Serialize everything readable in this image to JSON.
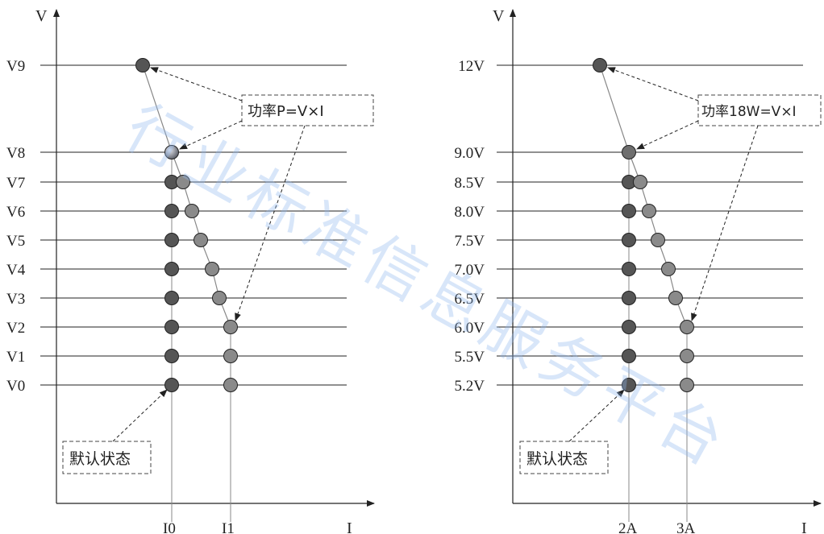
{
  "left_diagram": {
    "y_axis_label": "V",
    "x_axis_label": "I",
    "levels": [
      "V0",
      "V1",
      "V2",
      "V3",
      "V4",
      "V5",
      "V6",
      "V7",
      "V8",
      "V9"
    ],
    "x_ticks": [
      "I0",
      "I1"
    ],
    "power_label": "功率P=V×I",
    "default_label": "默认状态"
  },
  "right_diagram": {
    "y_axis_label": "V",
    "x_axis_label": "I",
    "levels": [
      "5.2V",
      "5.5V",
      "6.0V",
      "6.5V",
      "7.0V",
      "7.5V",
      "8.0V",
      "8.5V",
      "9.0V",
      "12V"
    ],
    "x_ticks": [
      "2A",
      "3A"
    ],
    "power_label": "功率18W=V×I",
    "default_label": "默认状态"
  },
  "watermark": "行业标准信息服务平台"
}
